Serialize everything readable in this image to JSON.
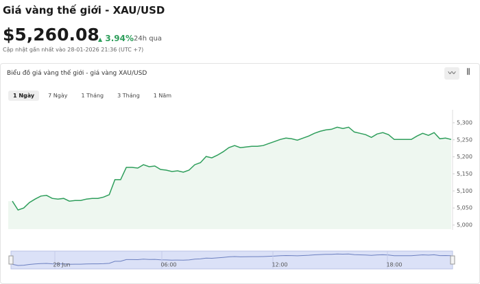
{
  "header": {
    "title": "Giá vàng thế giới - XAU/USD",
    "price": "$5,260.08",
    "change": "3.94%",
    "change_period": "24h qua",
    "updated": "Cập nhật gần nhất vào 28-01-2026 21:36 (UTC +7)"
  },
  "card": {
    "title": "Biểu đồ giá vàng thế giới - giá vàng XAU/USD",
    "tabs": [
      "1 Ngày",
      "7 Ngày",
      "1 Tháng",
      "3 Tháng",
      "1 Năm"
    ]
  },
  "chart_data": {
    "type": "area",
    "color": "#2e9e5b",
    "values": [
      5070,
      5044,
      5050,
      5066,
      5076,
      5085,
      5087,
      5078,
      5076,
      5078,
      5070,
      5072,
      5072,
      5076,
      5078,
      5078,
      5082,
      5089,
      5133,
      5133,
      5169,
      5169,
      5167,
      5177,
      5171,
      5173,
      5163,
      5161,
      5157,
      5159,
      5155,
      5161,
      5177,
      5183,
      5201,
      5197,
      5205,
      5215,
      5227,
      5233,
      5227,
      5229,
      5231,
      5231,
      5233,
      5239,
      5245,
      5251,
      5255,
      5253,
      5249,
      5255,
      5261,
      5269,
      5275,
      5279,
      5281,
      5287,
      5283,
      5287,
      5273,
      5269,
      5265,
      5257,
      5267,
      5271,
      5265,
      5251,
      5251,
      5251,
      5251,
      5261,
      5269,
      5263,
      5271,
      5253,
      5255,
      5251
    ],
    "ylim": [
      5000,
      5320
    ],
    "yticks": [
      {
        "value": 5000,
        "label": "5,000"
      },
      {
        "value": 5050,
        "label": "5,050"
      },
      {
        "value": 5100,
        "label": "5,100"
      },
      {
        "value": 5150,
        "label": "5,150"
      },
      {
        "value": 5200,
        "label": "5,200"
      },
      {
        "value": 5250,
        "label": "5,250"
      },
      {
        "value": 5300,
        "label": "5,300"
      }
    ],
    "navigator_labels": [
      "28 Jun",
      "06:00",
      "12:00",
      "18:00"
    ]
  }
}
